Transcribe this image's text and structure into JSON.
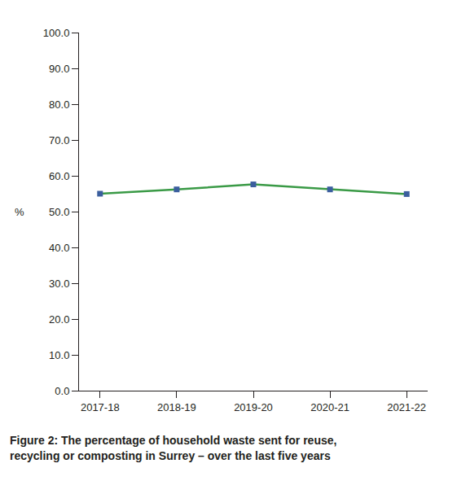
{
  "chart_data": {
    "type": "line",
    "title": "Figure 2: The percentage of household waste sent for reuse, recycling or composting in Surrey – over the last five years",
    "y_label": "%",
    "categories": [
      "2017-18",
      "2018-19",
      "2019-20",
      "2020-21",
      "2021-22"
    ],
    "values": [
      55.0,
      56.2,
      57.6,
      56.2,
      54.9
    ],
    "color": "#3a9a46",
    "colors": [
      "#3b5e9e",
      "#3b5e9e",
      "#3b5e9e",
      "#3b5e9e",
      "#3b5e9e"
    ],
    "marker": "square",
    "ylim": [
      0,
      100
    ],
    "yticks": [
      {
        "value": 0,
        "label": "0.0"
      },
      {
        "value": 10,
        "label": "10.0"
      },
      {
        "value": 20,
        "label": "20.0"
      },
      {
        "value": 30,
        "label": "30.0"
      },
      {
        "value": 40,
        "label": "40.0"
      },
      {
        "value": 50,
        "label": "50.0"
      },
      {
        "value": 60,
        "label": "60.0"
      },
      {
        "value": 70,
        "label": "70.0"
      },
      {
        "value": 80,
        "label": "80.0"
      },
      {
        "value": 90,
        "label": "90.0"
      },
      {
        "value": 100,
        "label": "100.0"
      }
    ],
    "grid": false
  }
}
